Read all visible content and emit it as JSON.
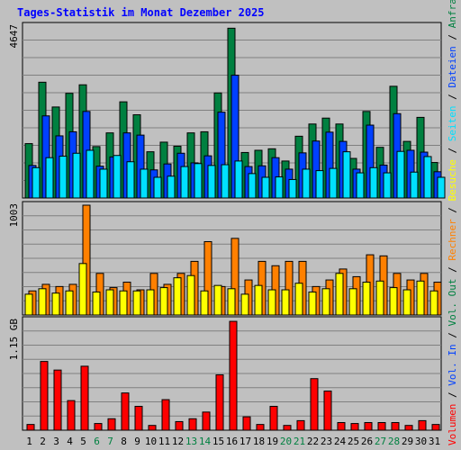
{
  "chart_data": {
    "type": "bar",
    "title": "Tages-Statistik im Monat Dezember 2025",
    "categories": [
      "1",
      "2",
      "3",
      "4",
      "5",
      "6",
      "7",
      "8",
      "9",
      "10",
      "11",
      "12",
      "13",
      "14",
      "15",
      "16",
      "17",
      "18",
      "19",
      "20",
      "21",
      "22",
      "23",
      "24",
      "25",
      "26",
      "27",
      "28",
      "29",
      "30",
      "31"
    ],
    "weekend_days": [
      "6",
      "7",
      "13",
      "14",
      "20",
      "21",
      "27",
      "28"
    ],
    "grid": true,
    "panels": [
      {
        "name": "requests",
        "max_label": "4647",
        "ylim": [
          0,
          4647
        ],
        "right_labels": [
          "Anfragen",
          "Dateien",
          "Seiten"
        ],
        "series": [
          {
            "name": "Anfragen",
            "color": "#008040",
            "values": [
              1470,
              3130,
              2460,
              2830,
              3060,
              1390,
              1760,
              2600,
              2250,
              1250,
              1510,
              1400,
              1760,
              1790,
              2840,
              4590,
              1230,
              1290,
              1330,
              1000,
              1670,
              2000,
              2160,
              2000,
              1070,
              2340,
              1370,
              3020,
              1530,
              2180,
              960
            ]
          },
          {
            "name": "Dateien",
            "color": "#0040ff",
            "values": [
              880,
              2220,
              1680,
              1790,
              2340,
              860,
              1110,
              1760,
              1700,
              760,
              920,
              1210,
              950,
              1140,
              2320,
              3320,
              850,
              870,
              1090,
              780,
              1220,
              1540,
              1780,
              1530,
              780,
              1970,
              890,
              2280,
              1290,
              1240,
              710
            ]
          },
          {
            "name": "Seiten",
            "color": "#00e0ff",
            "values": [
              820,
              1090,
              1130,
              1210,
              1290,
              780,
              1150,
              980,
              780,
              560,
              590,
              850,
              930,
              880,
              900,
              1000,
              660,
              560,
              570,
              500,
              780,
              740,
              800,
              1250,
              680,
              820,
              680,
              1260,
              700,
              1120,
              560
            ]
          }
        ]
      },
      {
        "name": "visits",
        "max_label": "1003",
        "ylim": [
          0,
          1003
        ],
        "right_labels": [
          "Rechner",
          "Besuche"
        ],
        "series": [
          {
            "name": "Rechner",
            "color": "#ff8000",
            "values": [
              220,
              280,
              260,
              280,
              1003,
              380,
              250,
              300,
              230,
              380,
              280,
              380,
              490,
              670,
              260,
              700,
              320,
              490,
              450,
              490,
              490,
              260,
              320,
              420,
              350,
              550,
              540,
              380,
              320,
              380,
              300
            ]
          },
          {
            "name": "Besuche",
            "color": "#ffff00",
            "values": [
              190,
              240,
              200,
              220,
              470,
              210,
              230,
              220,
              220,
              230,
              250,
              340,
              360,
              220,
              270,
              240,
              190,
              270,
              230,
              230,
              290,
              210,
              240,
              380,
              240,
              300,
              310,
              250,
              230,
              310,
              220
            ]
          }
        ]
      },
      {
        "name": "volume",
        "max_label": "1.15 GB",
        "ylim": [
          0,
          1.15
        ],
        "right_labels": [
          "Volumen",
          "Vol. In",
          "Vol. Out"
        ],
        "series": [
          {
            "name": "Volumen",
            "color": "#ff0000",
            "values": [
              0.06,
              0.72,
              0.63,
              0.31,
              0.67,
              0.07,
              0.12,
              0.39,
              0.25,
              0.05,
              0.32,
              0.09,
              0.12,
              0.19,
              0.58,
              1.14,
              0.14,
              0.06,
              0.25,
              0.05,
              0.1,
              0.54,
              0.41,
              0.08,
              0.07,
              0.08,
              0.08,
              0.08,
              0.05,
              0.1,
              0.06
            ]
          }
        ]
      }
    ]
  },
  "right_axis": {
    "parts": [
      {
        "text": "Volumen",
        "color": "#ff0000"
      },
      {
        "text": " / ",
        "color": "#000000"
      },
      {
        "text": "Vol. In",
        "color": "#0040ff"
      },
      {
        "text": " / ",
        "color": "#000000"
      },
      {
        "text": "Vol. Out",
        "color": "#008040"
      },
      {
        "text": " / ",
        "color": "#000000"
      },
      {
        "text": "Rechner",
        "color": "#ff8000"
      },
      {
        "text": " / ",
        "color": "#000000"
      },
      {
        "text": "Besuche",
        "color": "#ffff00"
      },
      {
        "text": " / ",
        "color": "#000000"
      },
      {
        "text": "Seiten",
        "color": "#00e0ff"
      },
      {
        "text": " / ",
        "color": "#000000"
      },
      {
        "text": "Dateien",
        "color": "#0040ff"
      },
      {
        "text": " / ",
        "color": "#000000"
      },
      {
        "text": "Anfragen",
        "color": "#008040"
      }
    ]
  },
  "colors": {
    "background": "#c0c0c0",
    "title": "#0000ff",
    "panel_border": "#000000",
    "grid": "#808080",
    "weekday_label": "#000000",
    "weekend_label": "#008040"
  }
}
